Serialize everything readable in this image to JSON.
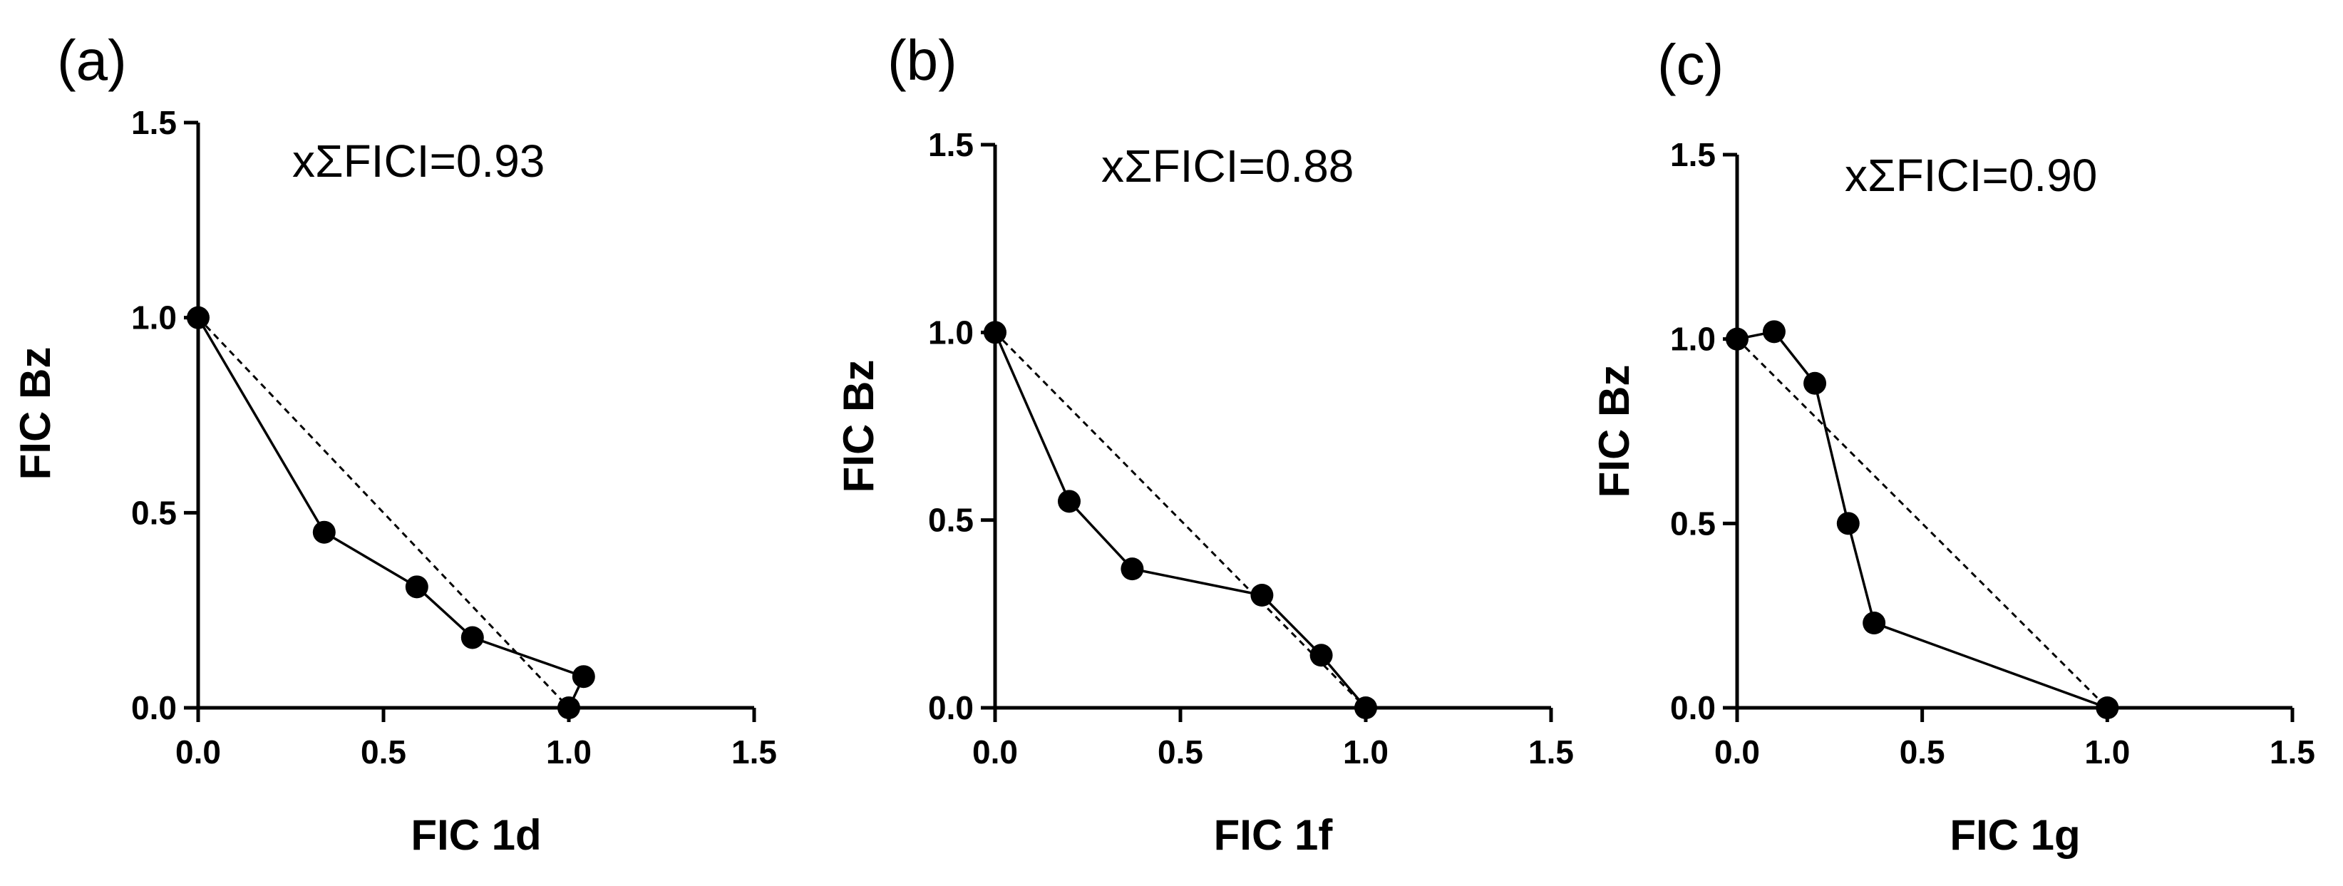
{
  "chart_data": [
    {
      "type": "line",
      "panel_label": "(a)",
      "annotation": "xΣFICI=0.93",
      "xlabel": "FIC 1d",
      "ylabel": "FIC Bz",
      "xlim": [
        0,
        1.5
      ],
      "ylim": [
        0,
        1.5
      ],
      "xticks": [
        "0.0",
        "0.5",
        "1.0",
        "1.5"
      ],
      "yticks": [
        "0.0",
        "0.5",
        "1.0",
        "1.5"
      ],
      "grid": false,
      "series": [
        {
          "style": "solid-markers",
          "x": [
            0.0,
            0.34,
            0.59,
            0.74,
            1.04,
            1.0
          ],
          "y": [
            1.0,
            0.45,
            0.31,
            0.18,
            0.08,
            0.0
          ]
        },
        {
          "style": "dashed",
          "x": [
            0.0,
            1.0
          ],
          "y": [
            1.0,
            0.0
          ]
        }
      ]
    },
    {
      "type": "line",
      "panel_label": "(b)",
      "annotation": "xΣFICI=0.88",
      "xlabel": "FIC 1f",
      "ylabel": "FIC Bz",
      "xlim": [
        0,
        1.5
      ],
      "ylim": [
        0,
        1.5
      ],
      "xticks": [
        "0.0",
        "0.5",
        "1.0",
        "1.5"
      ],
      "yticks": [
        "0.0",
        "0.5",
        "1.0",
        "1.5"
      ],
      "grid": false,
      "series": [
        {
          "style": "solid-markers",
          "x": [
            0.0,
            0.2,
            0.37,
            0.72,
            0.88,
            1.0
          ],
          "y": [
            1.0,
            0.55,
            0.37,
            0.3,
            0.14,
            0.0
          ]
        },
        {
          "style": "dashed",
          "x": [
            0.0,
            1.0
          ],
          "y": [
            1.0,
            0.0
          ]
        }
      ]
    },
    {
      "type": "line",
      "panel_label": "(c)",
      "annotation": "xΣFICI=0.90",
      "xlabel": "FIC 1g",
      "ylabel": "FIC Bz",
      "xlim": [
        0,
        1.5
      ],
      "ylim": [
        0,
        1.5
      ],
      "xticks": [
        "0.0",
        "0.5",
        "1.0",
        "1.5"
      ],
      "yticks": [
        "0.0",
        "0.5",
        "1.0",
        "1.5"
      ],
      "grid": false,
      "series": [
        {
          "style": "solid-markers",
          "x": [
            0.0,
            0.1,
            0.21,
            0.3,
            0.37,
            1.0
          ],
          "y": [
            1.0,
            1.02,
            0.88,
            0.5,
            0.23,
            0.0
          ]
        },
        {
          "style": "dashed",
          "x": [
            0.0,
            1.0
          ],
          "y": [
            1.0,
            0.0
          ]
        }
      ]
    }
  ],
  "colors": {
    "ink": "#000000",
    "background": "#ffffff"
  }
}
